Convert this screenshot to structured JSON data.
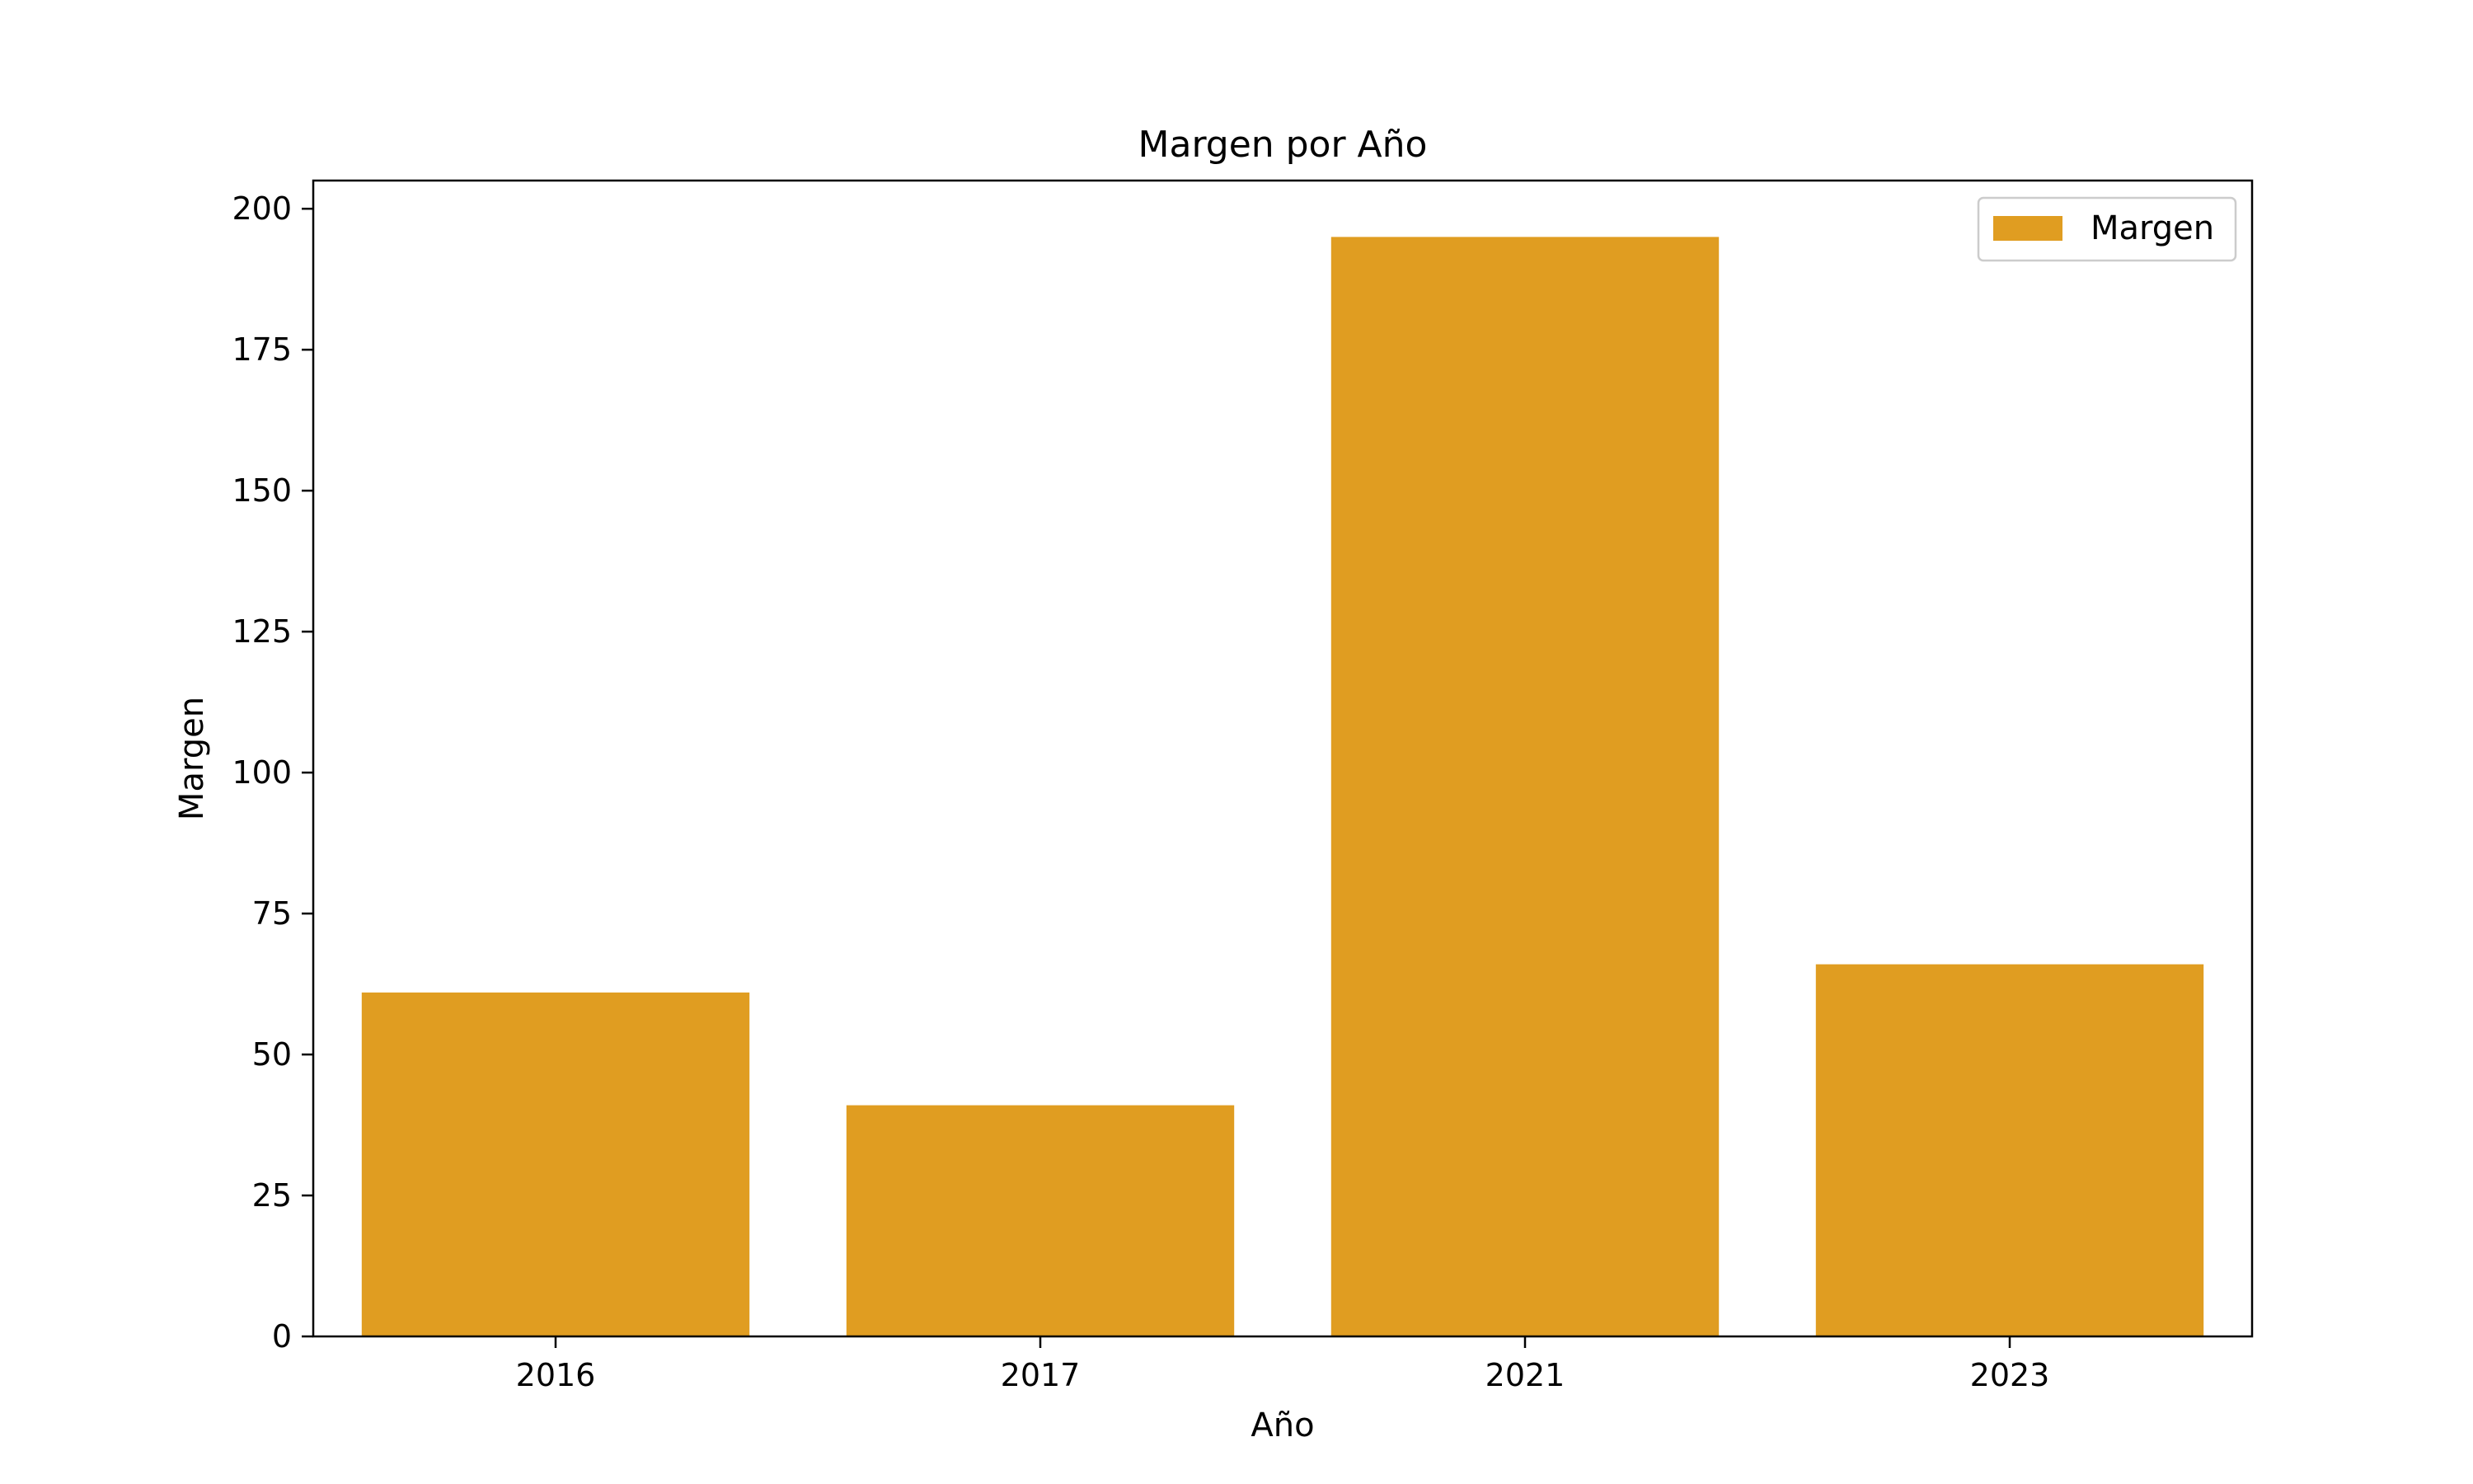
{
  "chart_data": {
    "type": "bar",
    "title": "Margen por Año",
    "xlabel": "Año",
    "ylabel": "Margen",
    "categories": [
      "2016",
      "2017",
      "2021",
      "2023"
    ],
    "series": [
      {
        "name": "Margen",
        "values": [
          61,
          41,
          195,
          66
        ],
        "color": "#e09d21"
      }
    ],
    "ylim": [
      0,
      205
    ],
    "yticks": [
      0,
      25,
      50,
      75,
      100,
      125,
      150,
      175,
      200
    ],
    "grid": false,
    "legend": {
      "position": "upper-right"
    }
  }
}
